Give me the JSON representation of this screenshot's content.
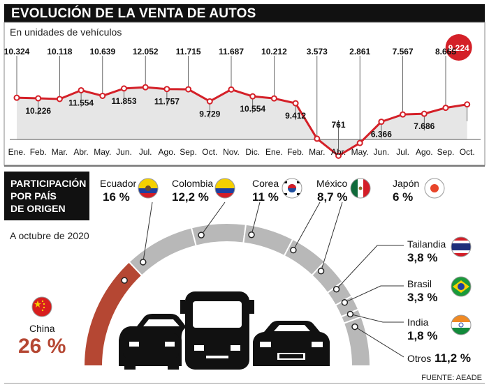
{
  "header": {
    "title": "EVOLUCIÓN DE LA VENTA DE AUTOS",
    "subtitle": "En unidades de vehículos"
  },
  "chart_data": [
    {
      "type": "line",
      "title": "EVOLUCIÓN DE LA VENTA DE AUTOS",
      "ylabel": "En unidades de vehículos",
      "categories": [
        "Ene.",
        "Feb.",
        "Mar.",
        "Abr.",
        "May.",
        "Jun.",
        "Jul.",
        "Ago.",
        "Sep.",
        "Oct.",
        "Nov.",
        "Dic.",
        "Ene.",
        "Feb.",
        "Mar.",
        "Abr.",
        "May.",
        "Jun.",
        "Jul.",
        "Ago.",
        "Sep.",
        "Oct."
      ],
      "values": [
        10324,
        10226,
        10118,
        11554,
        10639,
        11853,
        12052,
        11757,
        11715,
        9729,
        11687,
        10554,
        10212,
        9412,
        3573,
        761,
        2861,
        6366,
        7567,
        7686,
        8665,
        9224
      ],
      "labels": [
        "10.324",
        "10.226",
        "10.118",
        "11.554",
        "10.639",
        "11.853",
        "12.052",
        "11.757",
        "11.715",
        "9.729",
        "11.687",
        "10.554",
        "10.212",
        "9.412",
        "3.573",
        "761",
        "2.861",
        "6.366",
        "7.567",
        "7.686",
        "8.665",
        "9.224"
      ],
      "highlight_index": 21,
      "colors": {
        "line": "#d42028",
        "area": "#e6e6e6",
        "highlight": "#d42028"
      }
    },
    {
      "type": "pie",
      "title": "PARTICIPACIÓN POR PAÍS DE ORIGEN",
      "subtitle": "A octubre de 2020",
      "categories": [
        "China",
        "Ecuador",
        "Colombia",
        "Corea",
        "México",
        "Japón",
        "Tailandia",
        "Brasil",
        "India",
        "Otros"
      ],
      "values": [
        26,
        16,
        12.2,
        11,
        8.7,
        6,
        3.8,
        3.3,
        1.8,
        11.2
      ],
      "labels": [
        "26 %",
        "16 %",
        "12,2 %",
        "11 %",
        "8,7 %",
        "6 %",
        "3,8 %",
        "3,3 %",
        "1,8 %",
        "11,2 %"
      ],
      "colors": {
        "highlight": "#b54733",
        "segment": "#b8b8b8"
      }
    }
  ],
  "participation": {
    "title_lines": [
      "PARTICIPACIÓN",
      "POR PAÍS",
      "DE ORIGEN"
    ],
    "as_of": "A octubre de 2020"
  },
  "source": "FUENTE: AEADE"
}
